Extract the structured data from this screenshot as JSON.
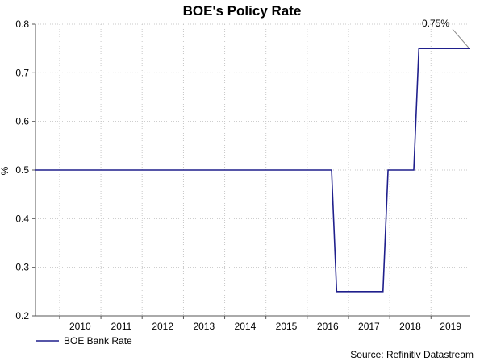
{
  "chart_data": {
    "type": "line",
    "title": "BOE's Policy Rate",
    "ylabel": "%",
    "xlabel": "",
    "ylim": [
      0.2,
      0.8
    ],
    "yticks": [
      "0.2",
      "0.3",
      "0.4",
      "0.5",
      "0.6",
      "0.7",
      "0.8"
    ],
    "xlim": [
      "2009-06-01",
      "2019-12-15"
    ],
    "xticks": [
      "2010",
      "2011",
      "2012",
      "2013",
      "2014",
      "2015",
      "2016",
      "2017",
      "2018",
      "2019"
    ],
    "grid": true,
    "legend_position": "bottom-left",
    "series": [
      {
        "name": "BOE Bank Rate",
        "color": "#1f1f8c",
        "x": [
          "2009-06-01",
          "2016-08-04",
          "2017-11-02",
          "2018-08-02",
          "2019-12-15"
        ],
        "y": [
          0.5,
          0.25,
          0.5,
          0.75,
          0.75
        ],
        "step": "post"
      }
    ],
    "annotation": {
      "text": "0.75%",
      "x": "2019-12-15",
      "y": 0.75
    },
    "source": "Source: Refinitiv Datastream"
  },
  "colors": {
    "series": "#1f1f8c",
    "grid": "#c8c8c8",
    "axis": "#555555"
  }
}
